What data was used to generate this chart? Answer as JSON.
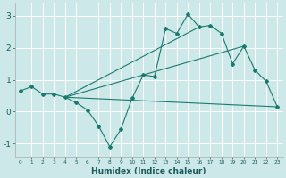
{
  "xlabel": "Humidex (Indice chaleur)",
  "ylabel": "",
  "xlim": [
    -0.5,
    23.5
  ],
  "ylim": [
    -1.4,
    3.4
  ],
  "xticks": [
    0,
    1,
    2,
    3,
    4,
    5,
    6,
    7,
    8,
    9,
    10,
    11,
    12,
    13,
    14,
    15,
    16,
    17,
    18,
    19,
    20,
    21,
    22,
    23
  ],
  "yticks": [
    -1,
    0,
    1,
    2,
    3
  ],
  "background_color": "#cde8e8",
  "grid_color": "#ffffff",
  "line_color": "#1a7a6e",
  "curve1_x": [
    0,
    1,
    2,
    3,
    4,
    5,
    6,
    7,
    8,
    9,
    10,
    11,
    12,
    13,
    14,
    15,
    16,
    17,
    18,
    19,
    20,
    21,
    22,
    23
  ],
  "curve1_y": [
    0.65,
    0.78,
    0.55,
    0.55,
    0.45,
    0.28,
    0.05,
    -0.45,
    -1.1,
    -0.55,
    0.42,
    1.15,
    1.1,
    2.6,
    2.45,
    3.05,
    2.65,
    2.7,
    2.45,
    1.5,
    2.05,
    1.3,
    0.95,
    0.15
  ],
  "line2_x": [
    4,
    23
  ],
  "line2_y": [
    0.45,
    0.15
  ],
  "line3_x": [
    4,
    20
  ],
  "line3_y": [
    0.45,
    2.05
  ],
  "line4_x": [
    4,
    16
  ],
  "line4_y": [
    0.45,
    2.65
  ]
}
